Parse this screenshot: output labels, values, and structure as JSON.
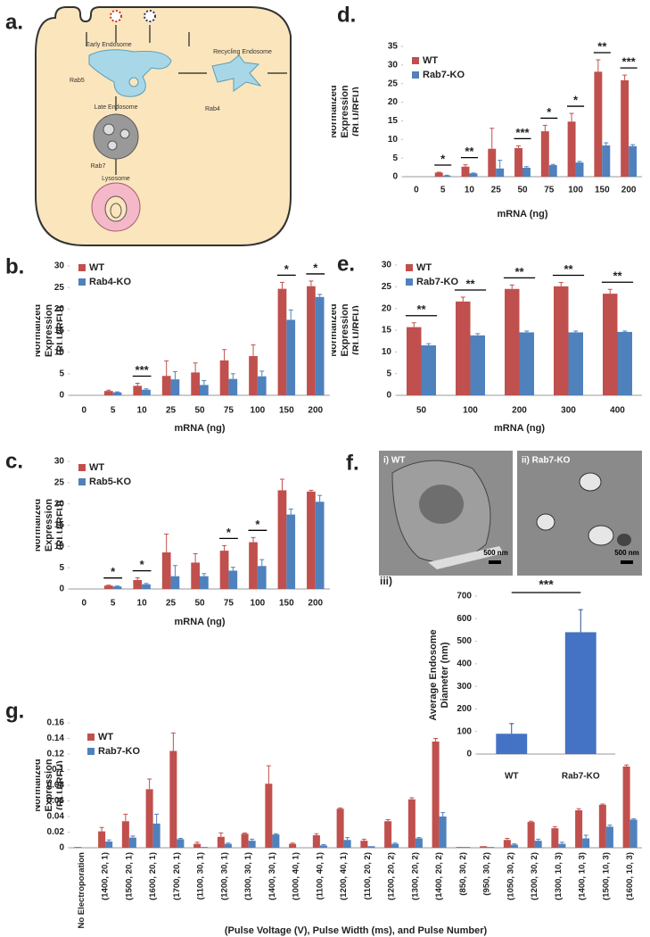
{
  "diagram": {
    "panel_label": "a.",
    "labels": [
      "Early Endosome",
      "Rab5",
      "Recycling Endosome",
      "Rab4",
      "Late Endosome",
      "Rab7",
      "Lysosome"
    ]
  },
  "micrographs": {
    "panel_label": "f.",
    "images": [
      {
        "label": "i) WT",
        "scale_bar": "500 nm"
      },
      {
        "label": "ii) Rab7-KO",
        "scale_bar": "500 nm"
      }
    ]
  },
  "chart_data": [
    {
      "type": "bar",
      "panel_label": "b.",
      "xlabel": "mRNA (ng)",
      "ylabel": "Normalized Expression (RLU/RFU)",
      "categories": [
        "0",
        "5",
        "10",
        "25",
        "50",
        "75",
        "100",
        "150",
        "200"
      ],
      "series": [
        {
          "name": "WT",
          "color": "#c0504d",
          "values": [
            0,
            1.0,
            2.2,
            4.5,
            5.3,
            8.1,
            9.1,
            24.7,
            25.3
          ],
          "errors": [
            null,
            0.2,
            0.6,
            3.5,
            2.2,
            2.5,
            2.6,
            1.5,
            1.2
          ]
        },
        {
          "name": "Rab4-KO",
          "color": "#4f81bd",
          "values": [
            0,
            0.7,
            1.3,
            3.7,
            2.4,
            3.8,
            4.4,
            17.5,
            22.8
          ],
          "errors": [
            null,
            0.1,
            0.2,
            1.8,
            1.0,
            1.2,
            1.2,
            2.3,
            0.6
          ]
        }
      ],
      "significance": [
        null,
        null,
        "***",
        null,
        null,
        null,
        null,
        "*",
        "*"
      ],
      "ylim": [
        0,
        30
      ],
      "yticks": [
        0,
        5,
        10,
        15,
        20,
        25,
        30
      ],
      "legend": "upper left"
    },
    {
      "type": "bar",
      "panel_label": "c.",
      "xlabel": "mRNA (ng)",
      "ylabel": "Normalized Expression (RLU/RFU)",
      "categories": [
        "0",
        "5",
        "10",
        "25",
        "50",
        "75",
        "100",
        "150",
        "200"
      ],
      "series": [
        {
          "name": "WT",
          "color": "#c0504d",
          "values": [
            0,
            0.8,
            2.1,
            8.6,
            6.2,
            9.0,
            11.0,
            23.2,
            22.9
          ],
          "errors": [
            null,
            0.1,
            0.5,
            4.3,
            2.1,
            1.2,
            1.1,
            2.6,
            0.3
          ]
        },
        {
          "name": "Rab5-KO",
          "color": "#4f81bd",
          "values": [
            0,
            0.6,
            1.1,
            3.0,
            3.0,
            4.3,
            5.4,
            17.5,
            20.5
          ],
          "errors": [
            null,
            0.1,
            0.2,
            2.5,
            0.6,
            0.8,
            1.5,
            1.3,
            1.5
          ]
        }
      ],
      "significance": [
        null,
        "*",
        "*",
        null,
        null,
        "*",
        "*",
        null,
        null
      ],
      "ylim": [
        0,
        30
      ],
      "yticks": [
        0,
        5,
        10,
        15,
        20,
        25,
        30
      ],
      "legend": "upper left"
    },
    {
      "type": "bar",
      "panel_label": "d.",
      "xlabel": "mRNA (ng)",
      "ylabel": "Normalized Expression (RLU/RFU)",
      "categories": [
        "0",
        "5",
        "10",
        "25",
        "50",
        "75",
        "100",
        "150",
        "200"
      ],
      "series": [
        {
          "name": "WT",
          "color": "#c0504d",
          "values": [
            0,
            1.1,
            2.7,
            7.5,
            7.7,
            12.2,
            14.8,
            28.2,
            25.9
          ],
          "errors": [
            null,
            0.1,
            0.5,
            5.5,
            0.6,
            1.6,
            2.2,
            3.2,
            1.4
          ]
        },
        {
          "name": "Rab7-KO",
          "color": "#4f81bd",
          "values": [
            0,
            0.3,
            0.9,
            2.2,
            2.4,
            3.1,
            3.8,
            8.4,
            8.2
          ],
          "errors": [
            null,
            0.1,
            0.1,
            2.2,
            0.3,
            0.2,
            0.3,
            0.7,
            0.4
          ]
        }
      ],
      "significance": [
        null,
        "*",
        "**",
        null,
        "***",
        "*",
        "*",
        "**",
        "***"
      ],
      "ylim": [
        0,
        35
      ],
      "yticks": [
        0,
        5,
        10,
        15,
        20,
        25,
        30,
        35
      ],
      "legend": "upper left"
    },
    {
      "type": "bar",
      "panel_label": "e.",
      "xlabel": "mRNA (ng)",
      "ylabel": "Normalized Expression (RLU/RFU)",
      "categories": [
        "50",
        "100",
        "200",
        "300",
        "400"
      ],
      "series": [
        {
          "name": "WT",
          "color": "#c0504d",
          "values": [
            15.7,
            21.6,
            24.5,
            25.1,
            23.4
          ],
          "errors": [
            1.0,
            1.0,
            0.9,
            0.9,
            1.0
          ]
        },
        {
          "name": "Rab7-KO",
          "color": "#4f81bd",
          "values": [
            11.5,
            13.8,
            14.5,
            14.5,
            14.6
          ],
          "errors": [
            0.4,
            0.4,
            0.3,
            0.3,
            0.2
          ]
        }
      ],
      "significance": [
        "**",
        "**",
        "**",
        "**",
        "**"
      ],
      "ylim": [
        0,
        30
      ],
      "yticks": [
        0,
        5,
        10,
        15,
        20,
        25,
        30
      ],
      "legend": "upper left"
    },
    {
      "type": "bar",
      "panel_label": "iii)",
      "ylabel": "Average Endosome Diameter (nm)",
      "categories": [
        "WT",
        "Rab7-KO"
      ],
      "series": [
        {
          "color": "#4472c4",
          "values": [
            90,
            540
          ],
          "errors": [
            45,
            100
          ]
        }
      ],
      "annotation": "***",
      "ylim": [
        0,
        700
      ],
      "yticks": [
        0,
        100,
        200,
        300,
        400,
        500,
        600,
        700
      ]
    },
    {
      "type": "bar",
      "panel_label": "g.",
      "xlabel": "(Pulse Voltage (V), Pulse Width (ms), and Pulse Number)",
      "ylabel": "Normalized Expression (RLU/RFU)",
      "categories": [
        "No Electroporation",
        "(1400, 20, 1)",
        "(1500, 20, 1)",
        "(1600, 20, 1)",
        "(1700, 20, 1)",
        "(1100, 30, 1)",
        "(1200, 30, 1)",
        "(1300, 30, 1)",
        "(1400, 30, 1)",
        "(1000, 40, 1)",
        "(1100, 40, 1)",
        "(1200, 40, 1)",
        "(1100, 20, 2)",
        "(1200, 20, 2)",
        "(1300, 20, 2)",
        "(1400, 20, 2)",
        "(850, 30, 2)",
        "(950, 30, 2)",
        "(1050, 30, 2)",
        "(1200, 30, 2)",
        "(1300, 10, 3)",
        "(1400, 10, 3)",
        "(1500, 10, 3)",
        "(1600, 10, 3)"
      ],
      "series": [
        {
          "name": "WT",
          "color": "#c0504d",
          "values": [
            0.001,
            0.021,
            0.034,
            0.075,
            0.124,
            0.005,
            0.014,
            0.018,
            0.082,
            0.005,
            0.016,
            0.05,
            0.009,
            0.034,
            0.062,
            0.136,
            0.001,
            0.002,
            0.01,
            0.033,
            0.025,
            0.048,
            0.055,
            0.104
          ],
          "errors": [
            null,
            0.005,
            0.009,
            0.013,
            0.023,
            0.002,
            0.005,
            0.001,
            0.023,
            0.001,
            0.002,
            0.001,
            0.002,
            0.002,
            0.002,
            0.004,
            null,
            null,
            0.002,
            0.001,
            0.002,
            0.002,
            0.001,
            0.002
          ]
        },
        {
          "name": "Rab7-KO",
          "color": "#4f81bd",
          "values": [
            0,
            0.008,
            0.013,
            0.031,
            0.011,
            0.001,
            0.005,
            0.009,
            0.017,
            0,
            0.003,
            0.01,
            0.002,
            0.005,
            0.012,
            0.04,
            0.001,
            0.001,
            0.004,
            0.009,
            0.005,
            0.012,
            0.027,
            0.036
          ],
          "errors": [
            null,
            0.002,
            0.002,
            0.012,
            0.001,
            null,
            0.001,
            0.002,
            0.001,
            null,
            0.001,
            0.003,
            null,
            0.001,
            0.001,
            0.005,
            null,
            null,
            0.001,
            0.002,
            0.002,
            0.004,
            0.002,
            0.001
          ]
        }
      ],
      "ylim": [
        0,
        0.16
      ],
      "yticks": [
        0,
        0.02,
        0.04,
        0.06,
        0.08,
        0.1,
        0.12,
        0.14,
        0.16
      ],
      "legend": "upper left"
    }
  ]
}
